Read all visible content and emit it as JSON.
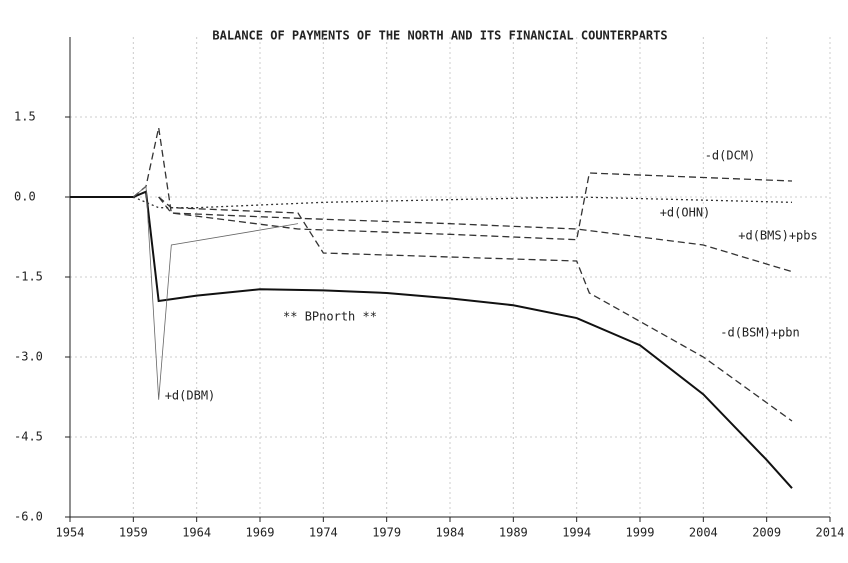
{
  "chart_data": {
    "type": "line",
    "title": "BALANCE OF PAYMENTS OF THE NORTH AND ITS FINANCIAL COUNTERPARTS",
    "xlim": [
      1954,
      2014
    ],
    "xticks": [
      1954,
      1959,
      1964,
      1969,
      1974,
      1979,
      1984,
      1989,
      1994,
      1999,
      2004,
      2009,
      2014
    ],
    "ylim": [
      -6,
      3
    ],
    "yticks": [
      1.5,
      {
        "value": 0,
        "label": "0.0"
      },
      -1.5,
      {
        "value": -3,
        "label": "-3.0"
      },
      -4.5,
      {
        "value": -6,
        "label": "-6.0"
      }
    ],
    "grid": true,
    "series": [
      {
        "name": "** BPnorth **",
        "color": "#111111",
        "dash": "solid",
        "width": 2,
        "x": [
          1954,
          1959,
          1960,
          1961,
          1964,
          1969,
          1974,
          1979,
          1984,
          1989,
          1994,
          1999,
          2004,
          2009,
          2011
        ],
        "values": [
          0,
          0,
          0.1,
          -1.95,
          -1.85,
          -1.73,
          -1.75,
          -1.8,
          -1.9,
          -2.03,
          -2.27,
          -2.78,
          -3.7,
          -4.93,
          -5.46
        ]
      },
      {
        "name": "-d(DCM)",
        "color": "#333333",
        "dash": "dashed",
        "width": 1.3,
        "x": [
          1959,
          1960,
          1961,
          1962,
          1972,
          1984,
          1994,
          1995,
          2011
        ],
        "values": [
          0,
          0.2,
          1.3,
          -0.3,
          -0.6,
          -0.7,
          -0.8,
          0.45,
          0.3
        ]
      },
      {
        "name": "+d(OHN)",
        "color": "#333333",
        "dash": "dotted",
        "width": 1.3,
        "x": [
          1959,
          1961,
          1964,
          1974,
          1994,
          2011
        ],
        "values": [
          0,
          -0.2,
          -0.2,
          -0.1,
          0,
          -0.1
        ]
      },
      {
        "name": "+d(BMS)+pbs",
        "color": "#333333",
        "dash": "dashed",
        "width": 1.3,
        "x": [
          1961,
          1962,
          1972,
          1984,
          1994,
          2004,
          2011
        ],
        "values": [
          0,
          -0.3,
          -0.4,
          -0.5,
          -0.6,
          -0.9,
          -1.4
        ]
      },
      {
        "name": "-d(BSM)+pbn",
        "color": "#333333",
        "dash": "dashed",
        "width": 1.3,
        "x": [
          1961,
          1962,
          1972,
          1974,
          1994,
          1995,
          2004,
          2011
        ],
        "values": [
          0,
          -0.2,
          -0.3,
          -1.05,
          -1.2,
          -1.8,
          -3.0,
          -4.2
        ]
      },
      {
        "name": "+d(DBM)",
        "color": "#666666",
        "dash": "solid",
        "width": 0.8,
        "x": [
          1959,
          1960,
          1961,
          1962,
          1972
        ],
        "values": [
          0,
          0.2,
          -3.8,
          -0.9,
          -0.5
        ]
      }
    ]
  }
}
